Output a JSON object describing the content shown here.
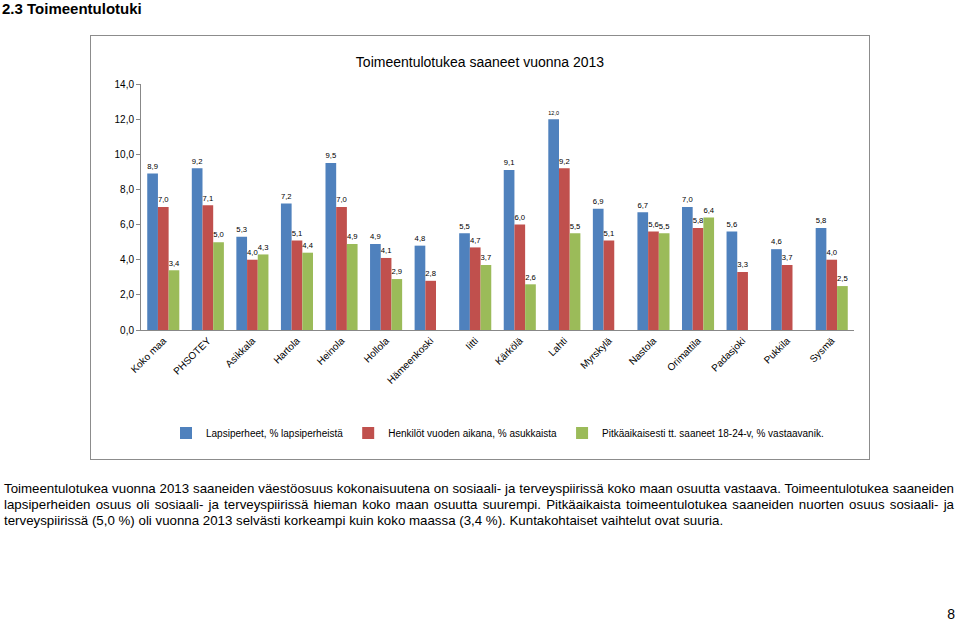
{
  "heading": "2.3 Toimeentulotuki",
  "chart_data": {
    "type": "bar",
    "title": "Toimeentulotukea saaneet vuonna 2013",
    "categories": [
      "Koko maa",
      "PHSOTEY",
      "Asikkala",
      "Hartola",
      "Heinola",
      "Hollola",
      "Hämeenkoski",
      "Iitti",
      "Kärkölä",
      "Lahti",
      "Myrskylä",
      "Nastola",
      "Orimattila",
      "Padasjoki",
      "Pukkila",
      "Sysmä"
    ],
    "series": [
      {
        "name": "Lapsiperheet, % lapsiperheistä",
        "color": "#4F81BD",
        "values": [
          8.9,
          9.2,
          5.3,
          7.2,
          9.5,
          4.9,
          4.8,
          5.5,
          9.1,
          12.0,
          6.9,
          6.7,
          7.0,
          5.6,
          4.6,
          5.8
        ],
        "value_labels": [
          "8,9",
          "9,2",
          "5,3",
          "7,2",
          "9,5",
          "4,9",
          "4,8",
          "5,5",
          "9,1",
          "12,0",
          "6,9",
          "6,7",
          "7,0",
          "5,6",
          "4,6",
          "5,8"
        ]
      },
      {
        "name": "Henkilöt vuoden aikana, % asukkaista",
        "color": "#C0504D",
        "values": [
          7.0,
          7.1,
          4.0,
          5.1,
          7.0,
          4.1,
          2.8,
          4.7,
          6.0,
          9.2,
          5.1,
          5.6,
          5.8,
          3.3,
          3.7,
          4.0
        ],
        "value_labels": [
          "7,0",
          "7,1",
          "4,0",
          "5,1",
          "7,0",
          "4,1",
          "2,8",
          "4,7",
          "6,0",
          "9,2",
          "5,1",
          "5,6",
          "5,8",
          "3,3",
          "3,7",
          "4,0"
        ]
      },
      {
        "name": "Pitkäaikaisesti tt. saaneet 18-24-v, % vastaavanik.",
        "color": "#9BBB59",
        "values": [
          3.4,
          5.0,
          4.3,
          4.4,
          4.9,
          2.9,
          null,
          3.7,
          2.6,
          5.5,
          null,
          5.5,
          6.4,
          null,
          null,
          2.5
        ],
        "value_labels": [
          "3,4",
          "5,0",
          "4,3",
          "4,4",
          "4,9",
          "2,9",
          null,
          "3,7",
          "2,6",
          "5,5",
          null,
          "5,5",
          "6,4",
          null,
          null,
          "2,5"
        ]
      }
    ],
    "ylim": [
      0,
      14
    ],
    "yticks": [
      {
        "value": 0,
        "label": "0,0"
      },
      {
        "value": 2,
        "label": "2,0"
      },
      {
        "value": 4,
        "label": "4,0"
      },
      {
        "value": 6,
        "label": "6,0"
      },
      {
        "value": 8,
        "label": "8,0"
      },
      {
        "value": 10,
        "label": "10,0"
      },
      {
        "value": 12,
        "label": "12,0"
      },
      {
        "value": 14,
        "label": "14,0"
      }
    ],
    "grid": false,
    "legend": "bottom",
    "data_labels": true
  },
  "paragraph": "Toimeentulotukea vuonna 2013 saaneiden väestöosuus kokonaisuutena on sosiaali- ja terveyspiirissä koko maan osuutta vastaava. Toimeentulotukea saaneiden lapsiperheiden osuus oli sosiaali- ja terveyspiirissä hieman koko maan osuutta suurempi. Pitkäaikaista toimeentulotukea saaneiden nuorten osuus sosiaali- ja terveyspiirissä (5,0 %) oli vuonna 2013 selvästi korkeampi kuin koko maassa (3,4 %). Kuntakohtaiset vaihtelut ovat suuria.",
  "page_number": "8"
}
